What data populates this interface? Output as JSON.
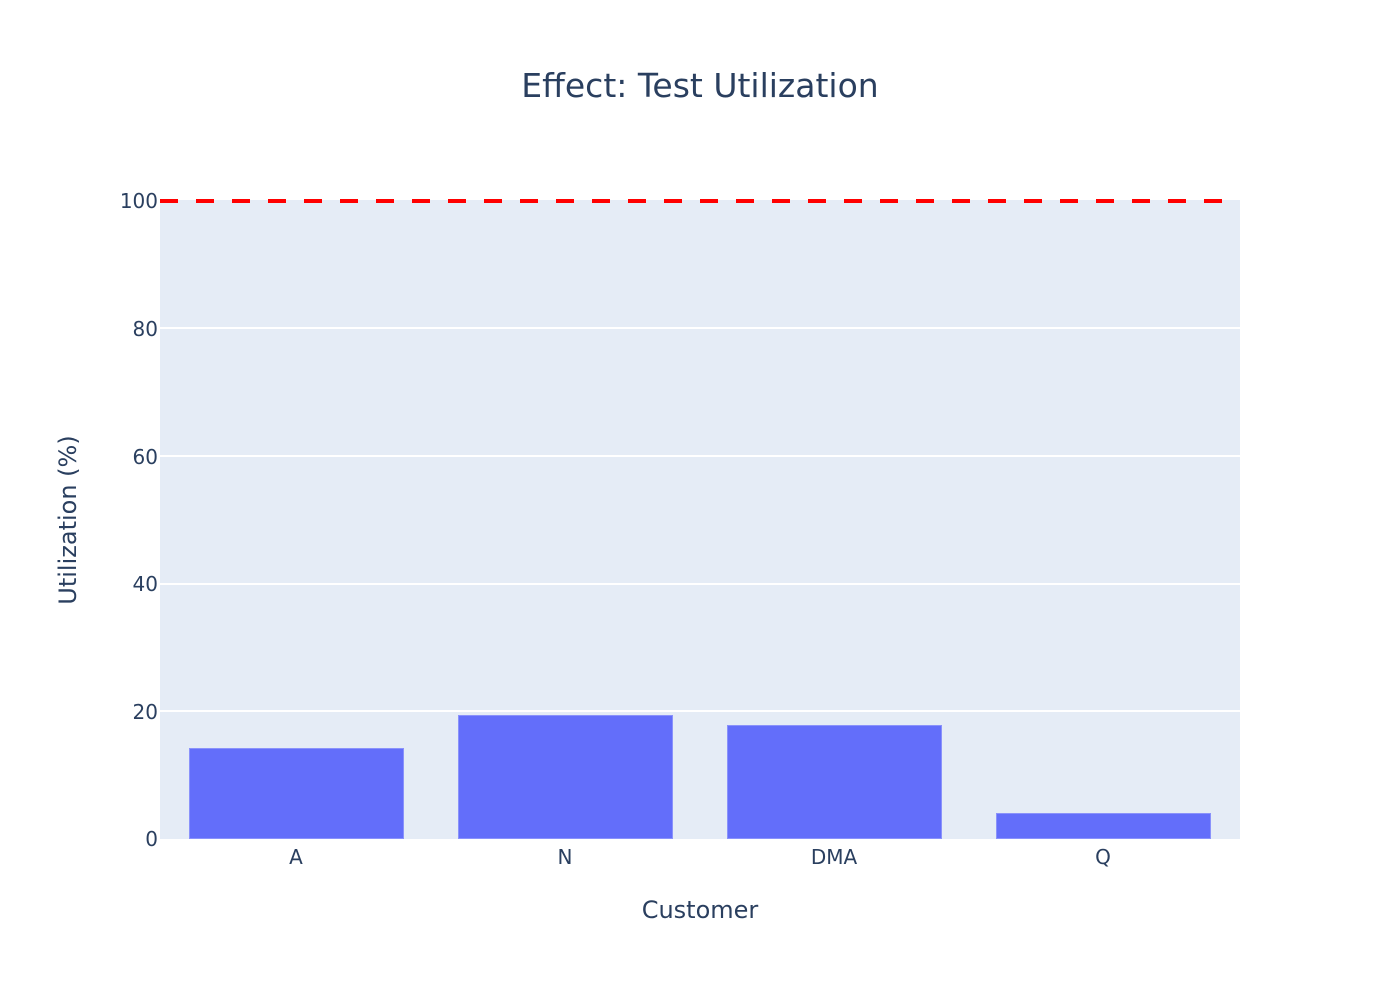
{
  "chart_data": {
    "type": "bar",
    "title": "Effect: Test Utilization",
    "xlabel": "Customer",
    "ylabel": "Utilization (%)",
    "categories": [
      "A",
      "N",
      "DMA",
      "Q"
    ],
    "values": [
      14.3,
      19.4,
      17.9,
      4.1
    ],
    "ylim": [
      0,
      100
    ],
    "yticks": [
      0,
      20,
      40,
      60,
      80,
      100
    ],
    "grid": true,
    "bar_color": "#636efa",
    "reference_line": {
      "y": 100,
      "style": "dashed",
      "color": "#ff0000"
    }
  },
  "labels": {
    "title": "Effect: Test Utilization",
    "xlabel": "Customer",
    "ylabel": "Utilization (%)",
    "yticks": [
      "0",
      "20",
      "40",
      "60",
      "80",
      "100"
    ],
    "xticks": [
      "A",
      "N",
      "DMA",
      "Q"
    ]
  }
}
